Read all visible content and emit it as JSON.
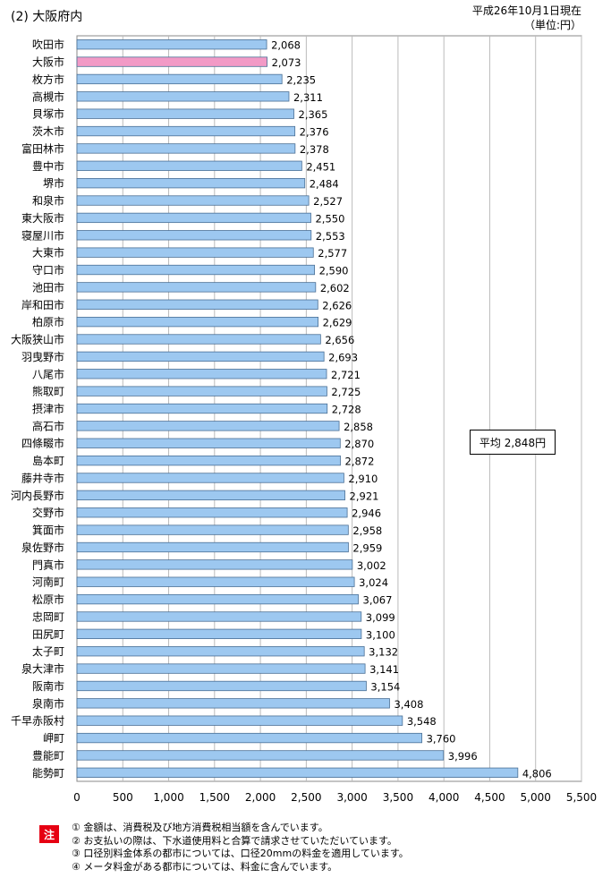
{
  "header": {
    "title": "(2) 大阪府内",
    "date": "平成26年10月1日現在",
    "unit": "（単位:円）"
  },
  "average_label": "平均 2,848円",
  "notes": {
    "badge": "注",
    "lines": [
      "① 金額は、消費税及び地方消費税相当額を含んでいます。",
      "② お支払いの際は、下水道使用料と合算で請求させていただいています。",
      "③ 口径別料金体系の都市については、口径20mmの料金を適用しています。",
      "④ メータ料金がある都市については、料金に含んでいます。"
    ]
  },
  "chart_data": {
    "type": "bar",
    "orientation": "horizontal",
    "categories": [
      "吹田市",
      "大阪市",
      "枚方市",
      "高槻市",
      "貝塚市",
      "茨木市",
      "富田林市",
      "豊中市",
      "堺市",
      "和泉市",
      "東大阪市",
      "寝屋川市",
      "大東市",
      "守口市",
      "池田市",
      "岸和田市",
      "柏原市",
      "大阪狭山市",
      "羽曳野市",
      "八尾市",
      "熊取町",
      "摂津市",
      "高石市",
      "四條畷市",
      "島本町",
      "藤井寺市",
      "河内長野市",
      "交野市",
      "箕面市",
      "泉佐野市",
      "門真市",
      "河南町",
      "松原市",
      "忠岡町",
      "田尻町",
      "太子町",
      "泉大津市",
      "阪南市",
      "泉南市",
      "千早赤阪村",
      "岬町",
      "豊能町",
      "能勢町"
    ],
    "values": [
      2068,
      2073,
      2235,
      2311,
      2365,
      2376,
      2378,
      2451,
      2484,
      2527,
      2550,
      2553,
      2577,
      2590,
      2602,
      2626,
      2629,
      2656,
      2693,
      2721,
      2725,
      2728,
      2858,
      2870,
      2872,
      2910,
      2921,
      2946,
      2958,
      2959,
      3002,
      3024,
      3067,
      3099,
      3100,
      3132,
      3141,
      3154,
      3408,
      3548,
      3760,
      3996,
      4806
    ],
    "value_labels": [
      "2,068",
      "2,073",
      "2,235",
      "2,311",
      "2,365",
      "2,376",
      "2,378",
      "2,451",
      "2,484",
      "2,527",
      "2,550",
      "2,553",
      "2,577",
      "2,590",
      "2,602",
      "2,626",
      "2,629",
      "2,656",
      "2,693",
      "2,721",
      "2,725",
      "2,728",
      "2,858",
      "2,870",
      "2,872",
      "2,910",
      "2,921",
      "2,946",
      "2,958",
      "2,959",
      "3,002",
      "3,024",
      "3,067",
      "3,099",
      "3,100",
      "3,132",
      "3,141",
      "3,154",
      "3,408",
      "3,548",
      "3,760",
      "3,996",
      "4,806"
    ],
    "highlight_category": "大阪市",
    "xlim": [
      0,
      5500
    ],
    "x_ticks": [
      0,
      500,
      1000,
      1500,
      2000,
      2500,
      3000,
      3500,
      4000,
      4500,
      5000,
      5500
    ],
    "x_tick_labels": [
      "0",
      "500",
      "1,000",
      "1,500",
      "2,000",
      "2,500",
      "3,000",
      "3,500",
      "4,000",
      "4,500",
      "5,000",
      "5,500"
    ],
    "grid": true,
    "colors": {
      "bar": "#9dc8f0",
      "highlight": "#f29ac6",
      "bar_stroke": "#4a6f95",
      "grid": "#bbbbbb"
    }
  }
}
